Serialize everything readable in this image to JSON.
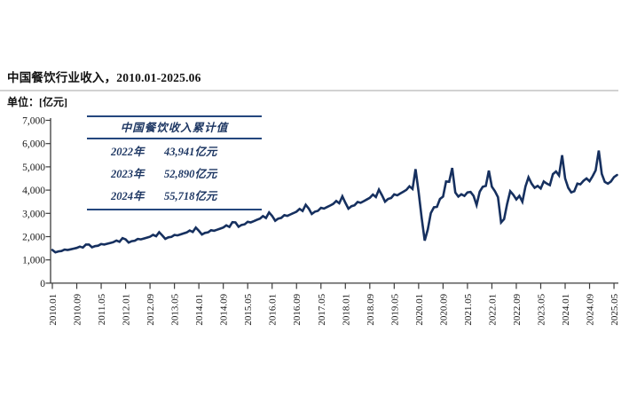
{
  "page": {
    "title": "中国餐饮行业收入，2010.01-2025.06",
    "unit_label": "单位：[亿元]"
  },
  "table": {
    "title": "中国餐饮收入累计值",
    "rows": [
      {
        "year": "2022年",
        "value": "43,941亿元"
      },
      {
        "year": "2023年",
        "value": "52,890亿元"
      },
      {
        "year": "2024年",
        "value": "55,718亿元"
      }
    ]
  },
  "colors": {
    "line": "#16305f",
    "axis": "#3c3c3c",
    "tick_label": "#1a1a1a",
    "table_border": "#24477e",
    "table_text": "#1f3864",
    "divider": "#d2d2d2"
  },
  "chart_data": {
    "type": "line",
    "title": "中国餐饮行业收入，2010.01-2025.06",
    "ylabel": "亿元",
    "x_start": "2010.01",
    "x_end": "2025.06",
    "x_frequency": "monthly",
    "ylim": [
      0,
      7000
    ],
    "ytick_step": 1000,
    "ytick_labels": [
      "0",
      "1,000",
      "2,000",
      "3,000",
      "4,000",
      "5,000",
      "6,000",
      "7,000"
    ],
    "xtick_labels": [
      "2010.01",
      "2010.09",
      "2011.05",
      "2012.01",
      "2012.09",
      "2013.05",
      "2014.01",
      "2014.09",
      "2015.05",
      "2016.01",
      "2016.09",
      "2017.05",
      "2018.01",
      "2018.09",
      "2019.05",
      "2020.01",
      "2020.09",
      "2021.05",
      "2022.01",
      "2022.09",
      "2023.05",
      "2024.01",
      "2024.09",
      "2025.05"
    ],
    "xtick_every_n_months": 8,
    "grid": false,
    "legend": false,
    "values": [
      1427,
      1324,
      1368,
      1383,
      1442,
      1427,
      1456,
      1486,
      1515,
      1574,
      1530,
      1662,
      1661,
      1541,
      1592,
      1609,
      1678,
      1661,
      1695,
      1729,
      1763,
      1832,
      1780,
      1935,
      1882,
      1746,
      1804,
      1824,
      1901,
      1882,
      1921,
      1959,
      1998,
      2076,
      2018,
      2192,
      2053,
      1904,
      1968,
      1989,
      2074,
      2053,
      2095,
      2137,
      2179,
      2264,
      2201,
      2391,
      2252,
      2090,
      2159,
      2183,
      2276,
      2252,
      2299,
      2345,
      2392,
      2485,
      2415,
      2624,
      2612,
      2424,
      2504,
      2531,
      2639,
      2612,
      2666,
      2720,
      2774,
      2882,
      2801,
      3043,
      2894,
      2685,
      2774,
      2804,
      2923,
      2894,
      2953,
      3013,
      3072,
      3192,
      3102,
      3371,
      3205,
      2974,
      3073,
      3106,
      3238,
      3205,
      3271,
      3337,
      3403,
      3535,
      3436,
      3734,
      3453,
      3204,
      3311,
      3346,
      3489,
      3453,
      3524,
      3596,
      3667,
      3809,
      3702,
      4023,
      3776,
      3504,
      3621,
      3659,
      3815,
      3776,
      3854,
      3932,
      4010,
      4165,
      4049,
      4900,
      3900,
      2800,
      1830,
      2310,
      3010,
      3260,
      3280,
      3620,
      3720,
      4370,
      4360,
      4950,
      3900,
      3720,
      3820,
      3750,
      3900,
      3920,
      3750,
      3360,
      3930,
      4140,
      4180,
      4841,
      4150,
      3950,
      3700,
      2609,
      2750,
      3400,
      3950,
      3800,
      3600,
      3750,
      3500,
      4157,
      4550,
      4280,
      4100,
      4180,
      4070,
      4371,
      4277,
      4212,
      4687,
      4800,
      4628,
      5500,
      4500,
      4100,
      3900,
      3950,
      4280,
      4250,
      4400,
      4500,
      4380,
      4600,
      4850,
      5700,
      4700,
      4350,
      4280,
      4370,
      4560,
      4650
    ]
  }
}
